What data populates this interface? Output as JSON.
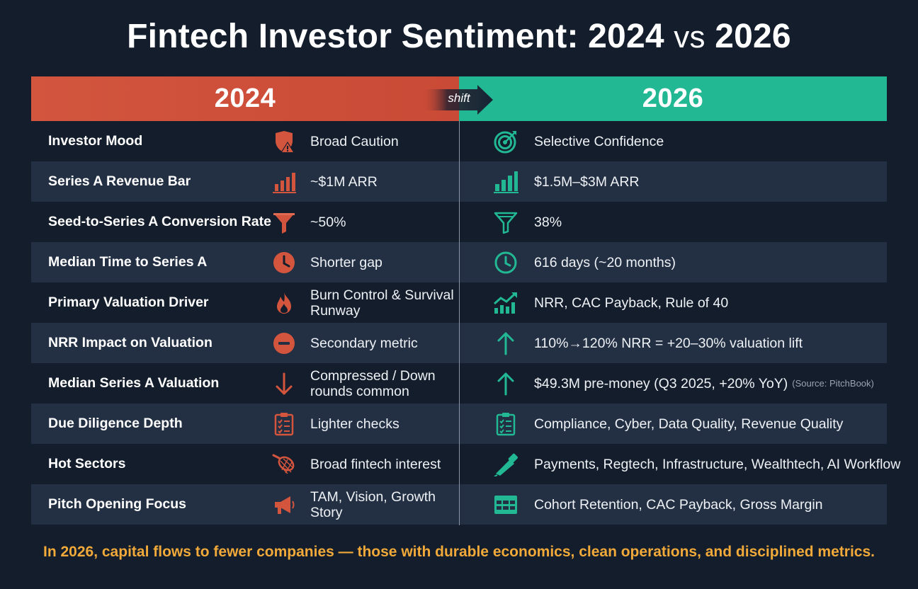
{
  "title": {
    "part1": "Fintech Investor Sentiment: 2024",
    "vs": "vs",
    "part2": "2026"
  },
  "header": {
    "left_year": "2024",
    "right_year": "2026",
    "shift_label": "shift"
  },
  "colors": {
    "left_accent": "#d2553e",
    "right_accent": "#22b894",
    "footer_text": "#f1a93a",
    "background": "#131d2b"
  },
  "rows": [
    {
      "label": "Investor Mood",
      "left_icon": "shield-alert-icon",
      "left": "Broad Caution",
      "right_icon": "target-icon",
      "right": "Selective Confidence",
      "source": ""
    },
    {
      "label": "Series A Revenue Bar",
      "left_icon": "bar-chart-icon",
      "left": "~$1M ARR",
      "right_icon": "bar-chart-icon",
      "right": "$1.5M–$3M ARR",
      "source": ""
    },
    {
      "label": "Seed-to-Series A Conversion Rate",
      "left_icon": "funnel-icon",
      "left": "~50%",
      "right_icon": "funnel-outline-icon",
      "right": "38%",
      "source": ""
    },
    {
      "label": "Median Time to Series A",
      "left_icon": "clock-icon",
      "left": "Shorter gap",
      "right_icon": "clock-outline-icon",
      "right": "616 days (~20 months)",
      "source": ""
    },
    {
      "label": "Primary Valuation Driver",
      "left_icon": "flame-icon",
      "left": "Burn Control & Survival Runway",
      "right_icon": "trending-up-chart-icon",
      "right": "NRR, CAC Payback, Rule of 40",
      "source": ""
    },
    {
      "label": "NRR Impact on Valuation",
      "left_icon": "minus-circle-icon",
      "left": "Secondary metric",
      "right_icon": "arrow-up-icon",
      "right": "110%→120% NRR = +20–30% valuation lift",
      "source": ""
    },
    {
      "label": "Median Series A Valuation",
      "left_icon": "arrow-down-icon",
      "left": "Compressed / Down rounds common",
      "right_icon": "arrow-up-icon",
      "right": "$49.3M pre-money (Q3 2025, +20% YoY)",
      "source": "(Source: PitchBook)"
    },
    {
      "label": "Due Diligence Depth",
      "left_icon": "clipboard-checklist-icon",
      "left": "Lighter checks",
      "right_icon": "clipboard-checklist-icon",
      "right": "Compliance, Cyber, Data Quality, Revenue Quality",
      "source": ""
    },
    {
      "label": "Hot Sectors",
      "left_icon": "net-icon",
      "left": "Broad fintech interest",
      "right_icon": "telescope-icon",
      "right": "Payments, Regtech, Infrastructure, Wealthtech, AI Workflow",
      "source": ""
    },
    {
      "label": "Pitch Opening Focus",
      "left_icon": "megaphone-icon",
      "left": "TAM, Vision, Growth Story",
      "right_icon": "table-grid-icon",
      "right": "Cohort Retention, CAC Payback, Gross Margin",
      "source": ""
    }
  ],
  "footer": "In 2026, capital flows to fewer companies — those with durable economics, clean operations, and disciplined metrics."
}
